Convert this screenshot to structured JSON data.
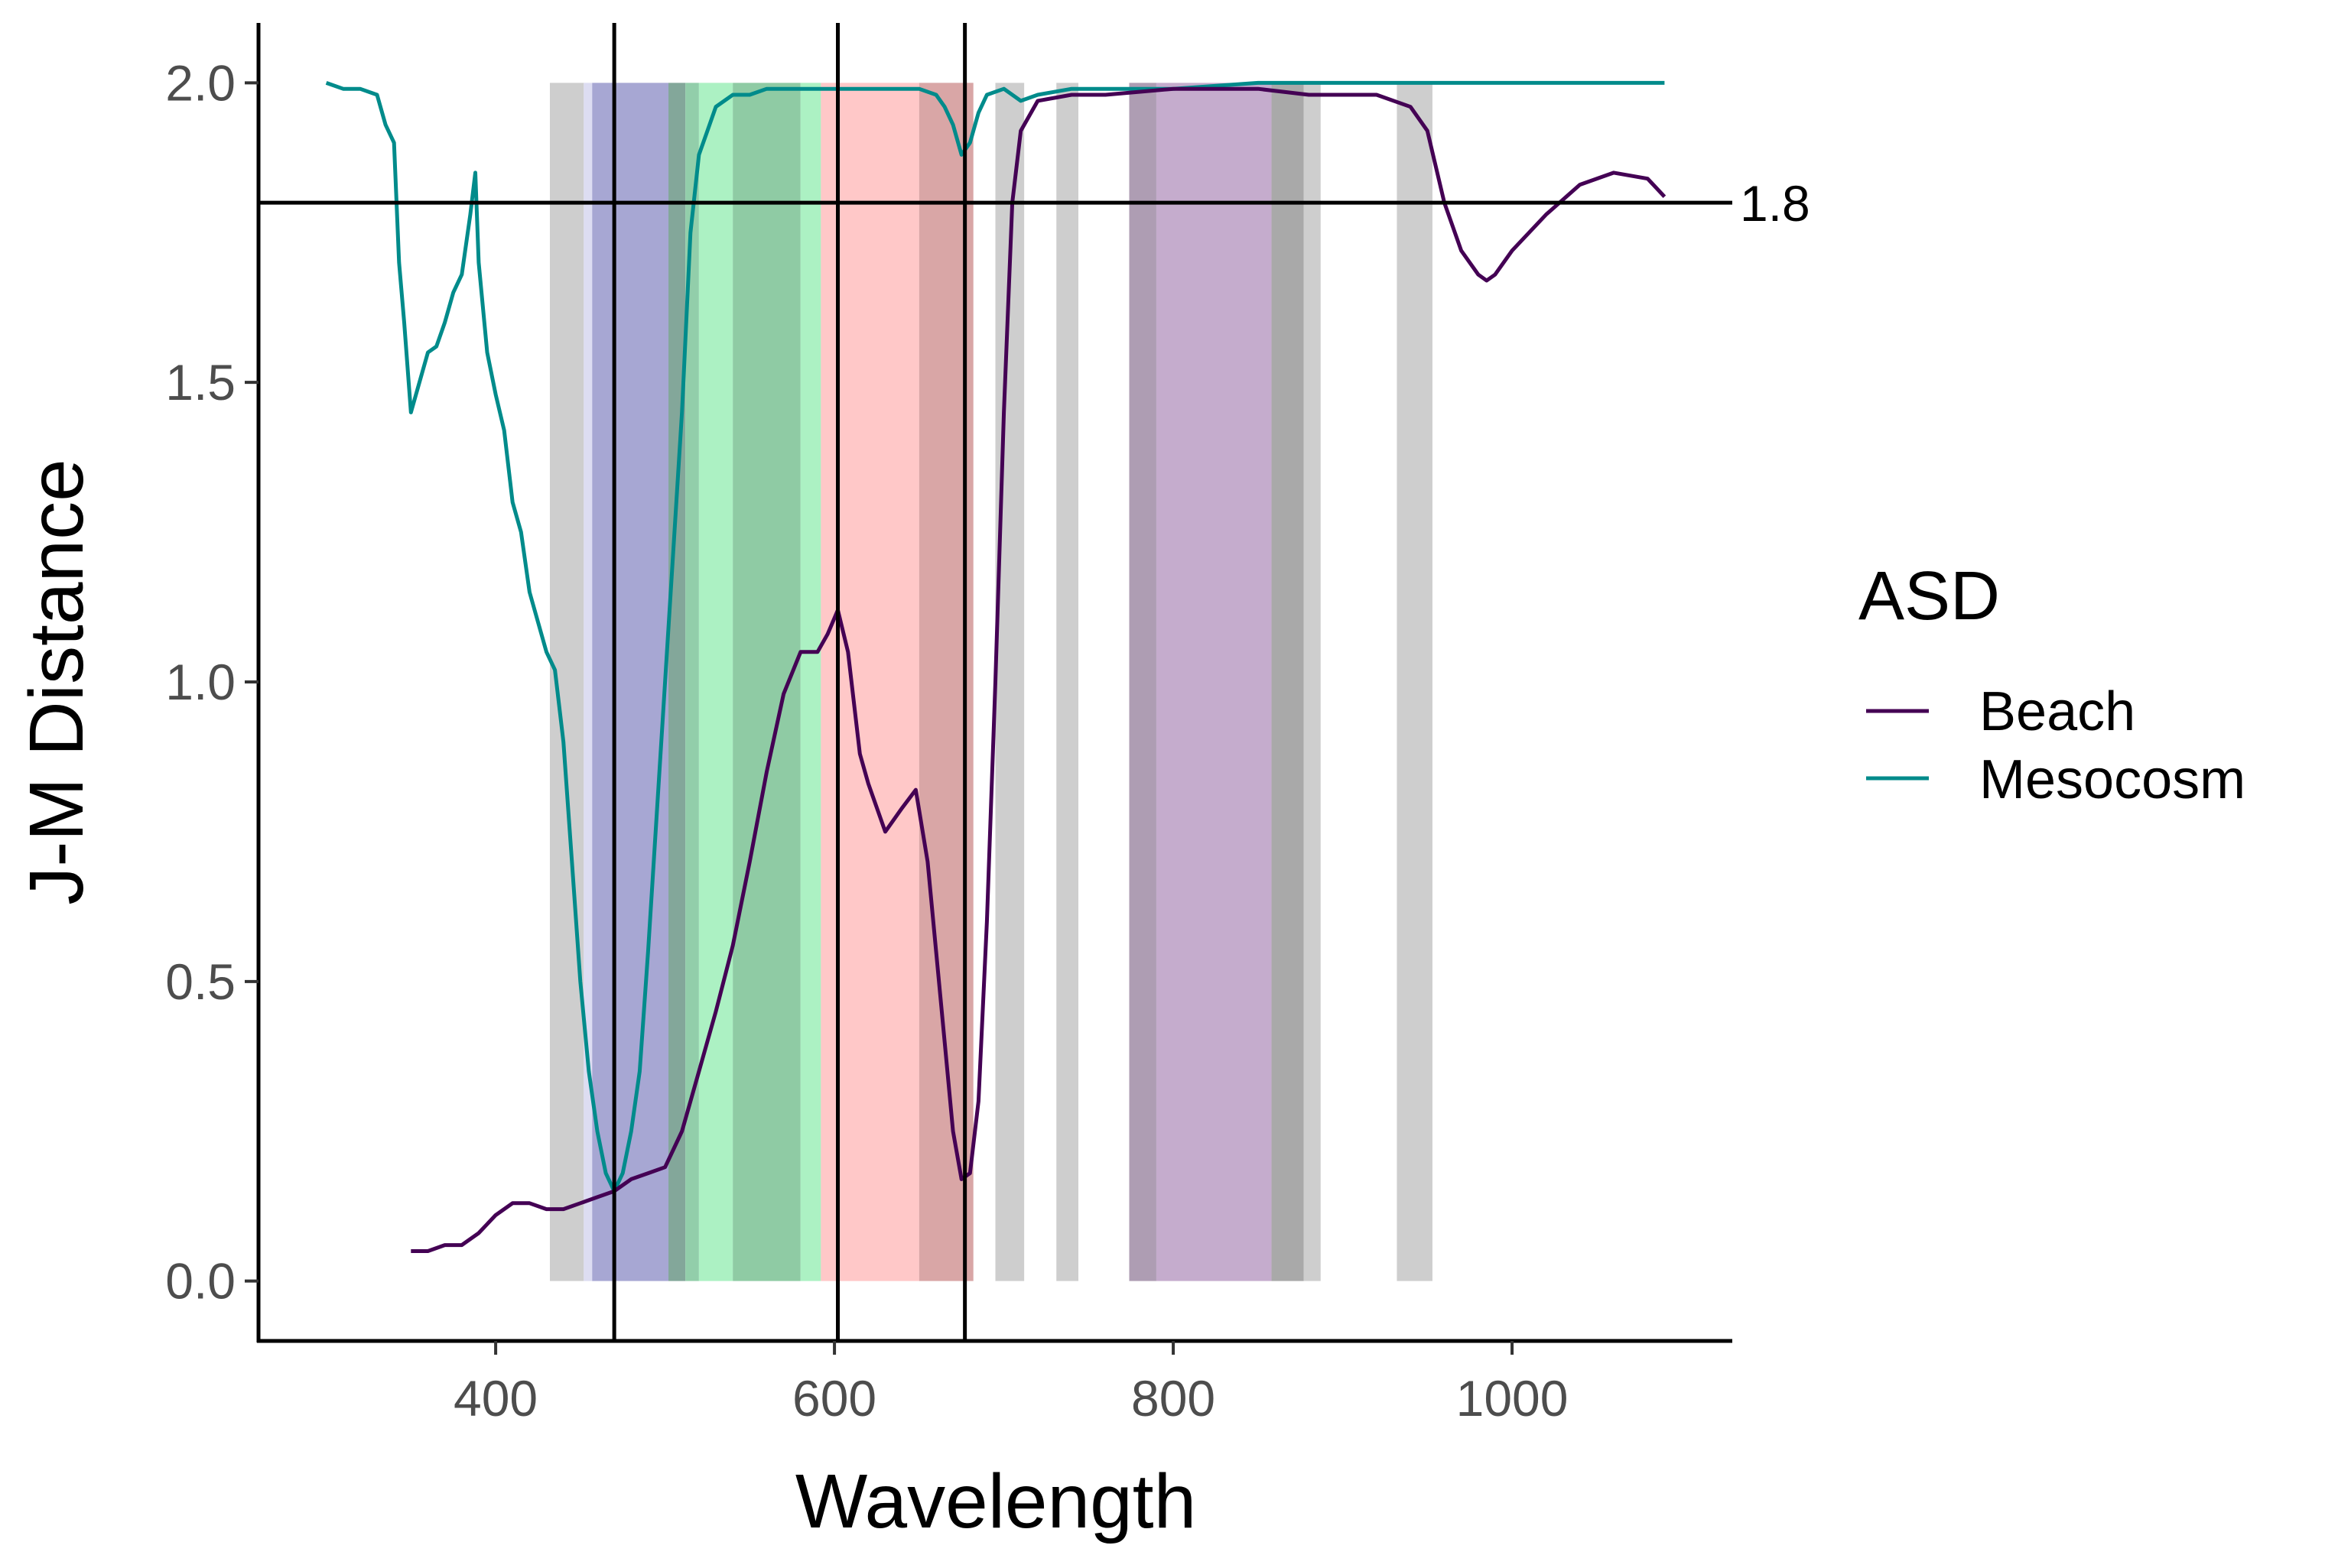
{
  "chart_data": {
    "type": "line",
    "xlabel": "Wavelength",
    "ylabel": "J-M Distance",
    "xlim": [
      260,
      1130
    ],
    "ylim": [
      -0.1,
      2.1
    ],
    "x_ticks": [
      400,
      600,
      800,
      1000
    ],
    "y_ticks": [
      0.0,
      0.5,
      1.0,
      1.5,
      2.0
    ],
    "y_tick_labels": [
      "0.0",
      "0.5",
      "1.0",
      "1.5",
      "2.0"
    ],
    "legend": {
      "title": "ASD",
      "position": "right",
      "entries": [
        {
          "label": "Beach",
          "color": "#440154"
        },
        {
          "label": "Mesocosm",
          "color": "#008b8b"
        }
      ]
    },
    "hlines": [
      {
        "y": 1.8,
        "label": "1.8"
      }
    ],
    "vlines": [
      470,
      602,
      677
    ],
    "bands": [
      {
        "from": 432,
        "to": 452,
        "color": "#b3b3b3",
        "opacity": 0.65
      },
      {
        "from": 452,
        "to": 457,
        "color": "#d7d7f0",
        "opacity": 0.85
      },
      {
        "from": 457,
        "to": 502,
        "color": "#5050a8",
        "opacity": 0.5
      },
      {
        "from": 502,
        "to": 512,
        "color": "#5a8a78",
        "opacity": 0.75
      },
      {
        "from": 512,
        "to": 520,
        "color": "#86c9a1",
        "opacity": 0.9
      },
      {
        "from": 520,
        "to": 540,
        "color": "#a8f0c0",
        "opacity": 0.95
      },
      {
        "from": 540,
        "to": 580,
        "color": "#5fb57d",
        "opacity": 0.7
      },
      {
        "from": 580,
        "to": 592,
        "color": "#a8f0c0",
        "opacity": 0.95
      },
      {
        "from": 592,
        "to": 650,
        "color": "#ff9a9a",
        "opacity": 0.55
      },
      {
        "from": 650,
        "to": 682,
        "color": "#c98080",
        "opacity": 0.7
      },
      {
        "from": 695,
        "to": 712,
        "color": "#b3b3b3",
        "opacity": 0.65
      },
      {
        "from": 731,
        "to": 744,
        "color": "#b3b3b3",
        "opacity": 0.65
      },
      {
        "from": 774,
        "to": 790,
        "color": "#9a85a0",
        "opacity": 0.8
      },
      {
        "from": 790,
        "to": 858,
        "color": "#a680b2",
        "opacity": 0.65
      },
      {
        "from": 858,
        "to": 877,
        "color": "#8c8c8c",
        "opacity": 0.75
      },
      {
        "from": 877,
        "to": 887,
        "color": "#b3b3b3",
        "opacity": 0.65
      },
      {
        "from": 932,
        "to": 953,
        "color": "#b3b3b3",
        "opacity": 0.65
      }
    ],
    "series": [
      {
        "name": "Beach",
        "color": "#440154",
        "x": [
          350,
          360,
          370,
          380,
          390,
          400,
          410,
          420,
          430,
          440,
          450,
          460,
          470,
          480,
          490,
          500,
          510,
          520,
          530,
          540,
          550,
          560,
          570,
          580,
          590,
          596,
          602,
          608,
          615,
          620,
          630,
          640,
          648,
          655,
          660,
          665,
          670,
          675,
          680,
          685,
          690,
          695,
          700,
          705,
          710,
          720,
          740,
          760,
          800,
          850,
          880,
          920,
          940,
          950,
          960,
          970,
          980,
          985,
          990,
          1000,
          1020,
          1040,
          1060,
          1080,
          1090
        ],
        "y": [
          0.05,
          0.05,
          0.06,
          0.06,
          0.08,
          0.11,
          0.13,
          0.13,
          0.12,
          0.12,
          0.13,
          0.14,
          0.15,
          0.17,
          0.18,
          0.19,
          0.25,
          0.35,
          0.45,
          0.56,
          0.7,
          0.85,
          0.98,
          1.05,
          1.05,
          1.08,
          1.12,
          1.05,
          0.88,
          0.83,
          0.75,
          0.79,
          0.82,
          0.7,
          0.55,
          0.4,
          0.25,
          0.17,
          0.18,
          0.3,
          0.6,
          1.0,
          1.45,
          1.8,
          1.92,
          1.97,
          1.98,
          1.98,
          1.99,
          1.99,
          1.98,
          1.98,
          1.96,
          1.92,
          1.8,
          1.72,
          1.68,
          1.67,
          1.68,
          1.72,
          1.78,
          1.83,
          1.85,
          1.84,
          1.81
        ]
      },
      {
        "name": "Mesocosm",
        "color": "#008b8b",
        "x": [
          300,
          310,
          320,
          330,
          335,
          340,
          343,
          346,
          350,
          355,
          360,
          365,
          370,
          375,
          380,
          385,
          388,
          390,
          395,
          400,
          405,
          410,
          415,
          420,
          430,
          435,
          440,
          445,
          450,
          455,
          460,
          465,
          470,
          475,
          480,
          485,
          490,
          500,
          510,
          515,
          520,
          525,
          530,
          540,
          550,
          560,
          580,
          600,
          620,
          640,
          650,
          660,
          665,
          670,
          675,
          680,
          685,
          690,
          700,
          710,
          720,
          740,
          760,
          800,
          850,
          900,
          950,
          1000,
          1050,
          1090
        ],
        "y": [
          2.0,
          1.99,
          1.99,
          1.98,
          1.93,
          1.9,
          1.7,
          1.6,
          1.45,
          1.5,
          1.55,
          1.56,
          1.6,
          1.65,
          1.68,
          1.78,
          1.85,
          1.7,
          1.55,
          1.48,
          1.42,
          1.3,
          1.25,
          1.15,
          1.05,
          1.02,
          0.9,
          0.7,
          0.5,
          0.35,
          0.25,
          0.18,
          0.15,
          0.18,
          0.25,
          0.35,
          0.55,
          1.0,
          1.45,
          1.75,
          1.88,
          1.92,
          1.96,
          1.98,
          1.98,
          1.99,
          1.99,
          1.99,
          1.99,
          1.99,
          1.99,
          1.98,
          1.96,
          1.93,
          1.88,
          1.9,
          1.95,
          1.98,
          1.99,
          1.97,
          1.98,
          1.99,
          1.99,
          1.99,
          2.0,
          2.0,
          2.0,
          2.0,
          2.0,
          2.0
        ]
      }
    ]
  }
}
